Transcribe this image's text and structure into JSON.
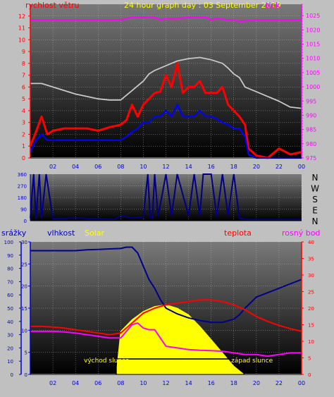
{
  "colors": {
    "background": "#c0c0c0",
    "plot_top": "#7a7a7a",
    "plot_bottom": "#000000",
    "wind_gust": "#ff0000",
    "wind_avg": "#0000ff",
    "pressure": "#ff00ff",
    "wind_dir": "#000080",
    "humidity": "#00008b",
    "solar": "#ffff00",
    "temperature": "#ff0000",
    "dewpoint": "#ff00ff",
    "rain": "#000080",
    "axis_blue": "#0000cd",
    "axis_red": "#ff0000",
    "axis_magenta": "#ff00ff",
    "axis_yellow": "#ffff00",
    "black": "#000000"
  },
  "chart_data": [
    {
      "type": "line",
      "panel": "wind-pressure",
      "title": "24 hour graph day : 03 September 2019",
      "left_axis_title": "rychlost větru",
      "right_axis_title": "tlak",
      "xlabels": [
        "02",
        "04",
        "06",
        "08",
        "10",
        "12",
        "14",
        "16",
        "18",
        "20",
        "22",
        "00"
      ],
      "x_range_hours": [
        0,
        24
      ],
      "left_ylim": [
        0,
        13
      ],
      "left_ticks": [
        "0",
        "1",
        "2",
        "3",
        "4",
        "5",
        "6",
        "7",
        "8",
        "9",
        "10",
        "11",
        "12"
      ],
      "right_ylim": [
        975,
        1029
      ],
      "right_ticks": [
        "975",
        "980",
        "985",
        "990",
        "995",
        "1000",
        "1005",
        "1010",
        "1015",
        "1020",
        "1025"
      ],
      "series": [
        {
          "key": "gust",
          "axis": "left",
          "x": [
            0,
            0.5,
            1,
            1.5,
            2,
            3,
            4,
            5,
            6,
            7,
            8,
            8.5,
            9,
            9.5,
            10,
            10.5,
            11,
            11.5,
            12,
            12.5,
            13,
            13.5,
            14,
            14.5,
            15,
            15.5,
            16,
            16.5,
            17,
            17.5,
            18,
            18.5,
            19,
            19.3,
            20,
            21,
            22,
            23,
            24
          ],
          "values": [
            1,
            2.2,
            3.5,
            2,
            2.3,
            2.5,
            2.5,
            2.5,
            2.3,
            2.6,
            2.8,
            3.2,
            4.5,
            3.5,
            4.5,
            5,
            5.5,
            5.6,
            7,
            6,
            8,
            5.5,
            6,
            6,
            6.5,
            5.5,
            5.5,
            5.5,
            6,
            4.5,
            4,
            3.5,
            2.8,
            0.8,
            0.2,
            0,
            0.8,
            0.3,
            0.5
          ]
        },
        {
          "key": "wind_avg",
          "axis": "left",
          "x": [
            0,
            0.5,
            1,
            1.5,
            2,
            3,
            4,
            5,
            6,
            7,
            8,
            8.5,
            9,
            9.5,
            10,
            10.5,
            11,
            11.5,
            12,
            12.5,
            13,
            13.5,
            14,
            14.5,
            15,
            15.5,
            16,
            16.5,
            17,
            17.5,
            18,
            18.5,
            19,
            19.3,
            20,
            22,
            24
          ],
          "values": [
            0.5,
            1.5,
            2,
            1.5,
            1.5,
            1.5,
            1.5,
            1.5,
            1.5,
            1.5,
            1.5,
            1.8,
            2.2,
            2.5,
            3,
            3,
            3.5,
            3.5,
            4,
            3.5,
            4.5,
            3.5,
            3.5,
            3.5,
            4,
            3.5,
            3.5,
            3.3,
            3,
            2.8,
            2.5,
            2.5,
            1.8,
            0.3,
            0,
            0,
            0
          ]
        },
        {
          "key": "pressure_trace",
          "axis": "left",
          "x": [
            0,
            0.5,
            1,
            2,
            3,
            4,
            5,
            6,
            7,
            8,
            8.5,
            9,
            10,
            10.5,
            11,
            11.5,
            12,
            12.5,
            13,
            14,
            15,
            16,
            17,
            17.5,
            18,
            18.5,
            19,
            20,
            21,
            22,
            23,
            24
          ],
          "values": [
            6.3,
            6.3,
            6.3,
            6.0,
            5.7,
            5.4,
            5.2,
            5.0,
            4.9,
            4.9,
            5.3,
            5.7,
            6.5,
            7.1,
            7.4,
            7.6,
            7.8,
            8.0,
            8.2,
            8.4,
            8.5,
            8.3,
            8.0,
            7.6,
            7.1,
            6.8,
            6.0,
            5.6,
            5.2,
            4.8,
            4.3,
            4.2
          ]
        },
        {
          "key": "pressure",
          "axis": "right",
          "x": [
            0,
            6,
            8,
            9,
            11,
            11.5,
            12,
            13,
            14,
            15.5,
            16,
            16.5,
            17.5,
            18,
            18.5,
            20,
            22,
            24
          ],
          "values": [
            1023.5,
            1023.5,
            1023.5,
            1024.5,
            1024.5,
            1023.5,
            1024,
            1024,
            1024.5,
            1024.5,
            1023.5,
            1024,
            1023.5,
            1023.5,
            1023,
            1023.5,
            1023.5,
            1023.5
          ]
        }
      ]
    },
    {
      "type": "line",
      "panel": "wind-direction",
      "ylim": [
        0,
        360
      ],
      "left_ticks": [
        "0",
        "90",
        "180",
        "270",
        "360"
      ],
      "right_labels": [
        "N",
        "W",
        "S",
        "E",
        "N"
      ],
      "x": [
        0,
        0.3,
        0.5,
        0.8,
        1,
        1.4,
        2,
        4,
        6,
        7.5,
        8,
        9,
        10,
        10.4,
        10.6,
        10.8,
        11,
        11.3,
        12,
        12.5,
        13,
        14,
        14.5,
        15,
        15.3,
        16,
        16.5,
        17,
        17.5,
        18,
        18.5,
        19,
        20,
        22,
        24
      ],
      "values": [
        20,
        360,
        10,
        360,
        20,
        360,
        15,
        20,
        15,
        10,
        40,
        20,
        30,
        360,
        30,
        20,
        360,
        30,
        360,
        40,
        360,
        40,
        360,
        40,
        360,
        360,
        30,
        360,
        40,
        360,
        20,
        10,
        10,
        10,
        10
      ]
    },
    {
      "type": "line",
      "panel": "humidity-temperature",
      "axis_titles": {
        "rain": "srážky",
        "humidity": "vlhkost",
        "solar": "Solar",
        "temperature": "teplota",
        "dewpoint": "rosný bod"
      },
      "xlabels": [
        "02",
        "04",
        "06",
        "08",
        "10",
        "12",
        "14",
        "16",
        "18",
        "20",
        "22",
        "00"
      ],
      "x_range_hours": [
        0,
        24
      ],
      "axes": [
        {
          "key": "rain",
          "range": [
            0,
            100
          ],
          "ticks": [
            "0",
            "10",
            "20",
            "30",
            "40",
            "50",
            "60",
            "70",
            "80",
            "90",
            "100"
          ]
        },
        {
          "key": "humidity",
          "range": [
            0,
            30
          ],
          "ticks": [
            "0",
            "5",
            "10",
            "15",
            "20",
            "25",
            "30"
          ]
        },
        {
          "key": "temperature",
          "range": [
            0,
            40
          ],
          "ticks": [
            "0",
            "5",
            "10",
            "15",
            "20",
            "25",
            "30",
            "35",
            "40"
          ]
        }
      ],
      "annotations": {
        "sunrise": "východ slunce",
        "sunset": "západ slunce"
      },
      "sunrise_hour": 7.6,
      "sunset_hour": 18.9,
      "series": [
        {
          "key": "humidity",
          "name": "vlhkost",
          "axis": "humidity",
          "x": [
            0,
            1,
            2,
            3,
            4,
            5,
            6,
            7,
            8,
            8.5,
            9,
            9.5,
            10,
            10.5,
            11,
            11.5,
            12,
            13,
            14,
            15,
            16,
            17,
            18,
            18.5,
            19,
            20,
            21,
            22,
            23,
            24
          ],
          "values": [
            28.0,
            28.0,
            28.0,
            28.0,
            28.0,
            28.2,
            28.3,
            28.4,
            28.5,
            28.8,
            28.8,
            27.5,
            24.5,
            21.5,
            19.5,
            17.0,
            15.0,
            13.7,
            12.8,
            12.2,
            11.8,
            11.8,
            12.5,
            13.5,
            15.0,
            17.5,
            18.5,
            19.5,
            20.5,
            21.5
          ]
        },
        {
          "key": "temperature",
          "name": "teplota",
          "axis": "temperature",
          "x": [
            0,
            1,
            2,
            3,
            4,
            5,
            6,
            7,
            8,
            9,
            10,
            11,
            12,
            13,
            14,
            15,
            16,
            17,
            18,
            19,
            20,
            21,
            22,
            23,
            24
          ],
          "values": [
            14.5,
            14.5,
            14.3,
            14.0,
            13.5,
            13.0,
            12.5,
            12.0,
            12.5,
            15.5,
            18.5,
            20.0,
            21.0,
            21.5,
            22.0,
            22.5,
            22.5,
            22.0,
            21.0,
            19.5,
            17.5,
            16.0,
            14.8,
            13.8,
            13.0
          ]
        },
        {
          "key": "dewpoint",
          "name": "rosný bod",
          "axis": "temperature",
          "x": [
            0,
            1,
            2,
            3,
            4,
            5,
            6,
            7,
            8,
            8.5,
            9,
            9.5,
            10,
            10.5,
            11,
            11.5,
            12,
            13,
            14,
            15,
            16,
            17,
            18,
            19,
            20,
            21,
            22,
            23,
            24
          ],
          "values": [
            13.0,
            13.0,
            13.0,
            12.8,
            12.5,
            12.0,
            11.5,
            11.0,
            11.0,
            13.0,
            15.0,
            15.5,
            14.0,
            13.5,
            13.5,
            11.0,
            8.5,
            8.0,
            7.5,
            7.3,
            7.2,
            7.0,
            6.5,
            6.0,
            6.0,
            5.5,
            6.0,
            6.5,
            6.5
          ]
        },
        {
          "key": "solar",
          "name": "Solar",
          "axis": "temperature",
          "x": [
            7.6,
            8,
            9,
            10,
            11,
            12,
            13,
            14,
            15,
            16,
            17,
            18,
            18.9
          ],
          "values": [
            0,
            13.0,
            16.5,
            19.0,
            20.5,
            21.0,
            20.0,
            18.0,
            14.5,
            10.5,
            6.5,
            2.5,
            0
          ]
        },
        {
          "key": "daylight",
          "axis": "humidity",
          "x": [
            0,
            7.55,
            7.6,
            18.9,
            18.95,
            24
          ],
          "values": [
            0.5,
            0.5,
            3.5,
            3.5,
            0.5,
            0.5
          ]
        }
      ]
    }
  ]
}
